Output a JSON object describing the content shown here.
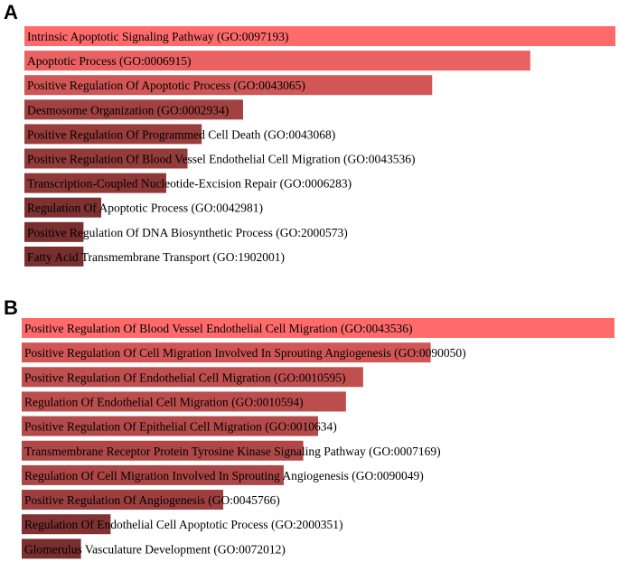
{
  "panels": [
    {
      "label": "A"
    },
    {
      "label": "B"
    }
  ],
  "chart_data": [
    {
      "type": "bar",
      "orientation": "horizontal",
      "panel": "A",
      "title": "",
      "xlabel": "",
      "ylabel": "",
      "grid": false,
      "legend": "none",
      "color_high": "#FF6B6B",
      "color_low": "#7A2F2F",
      "categories": [
        "Intrinsic Apoptotic Signaling Pathway (GO:0097193)",
        "Apoptotic Process (GO:0006915)",
        "Positive Regulation Of Apoptotic Process (GO:0043065)",
        "Desmosome Organization (GO:0002934)",
        "Positive Regulation Of Programmed Cell Death (GO:0043068)",
        "Positive Regulation Of Blood Vessel Endothelial Cell Migration (GO:0043536)",
        "Transcription-Coupled Nucleotide-Excision Repair (GO:0006283)",
        "Regulation Of Apoptotic Process (GO:0042981)",
        "Positive Regulation Of DNA Biosynthetic Process (GO:2000573)",
        "Fatty Acid Transmembrane Transport (GO:1902001)"
      ],
      "values": [
        1.0,
        0.856,
        0.69,
        0.37,
        0.3,
        0.276,
        0.24,
        0.13,
        0.1,
        0.1
      ]
    },
    {
      "type": "bar",
      "orientation": "horizontal",
      "panel": "B",
      "title": "",
      "xlabel": "",
      "ylabel": "",
      "grid": false,
      "legend": "none",
      "color_high": "#FF6B6B",
      "color_low": "#7A2F2F",
      "categories": [
        "Positive Regulation Of Blood Vessel Endothelial Cell Migration (GO:0043536)",
        "Positive Regulation Of Cell Migration Involved In Sprouting Angiogenesis (GO:0090050)",
        "Positive Regulation Of Endothelial Cell Migration (GO:0010595)",
        "Regulation Of Endothelial Cell Migration (GO:0010594)",
        "Positive Regulation Of Epithelial Cell Migration (GO:0010634)",
        "Transmembrane Receptor Protein Tyrosine Kinase Signaling Pathway (GO:0007169)",
        "Regulation Of Cell Migration Involved In Sprouting Angiogenesis (GO:0090049)",
        "Positive Regulation Of Angiogenesis (GO:0045766)",
        "Regulation Of Endothelial Cell Apoptotic Process (GO:2000351)",
        "Glomerulus Vasculature Development (GO:0072012)"
      ],
      "values": [
        1.0,
        0.69,
        0.576,
        0.547,
        0.5,
        0.475,
        0.442,
        0.34,
        0.15,
        0.1
      ]
    }
  ]
}
